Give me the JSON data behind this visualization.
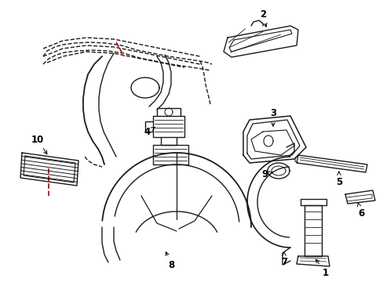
{
  "background_color": "#ffffff",
  "line_color": "#1a1a1a",
  "red_dash_color": "#cc0000",
  "label_color": "#000000",
  "label_fontsize": 8.5,
  "figsize": [
    4.89,
    3.6
  ],
  "dpi": 100
}
